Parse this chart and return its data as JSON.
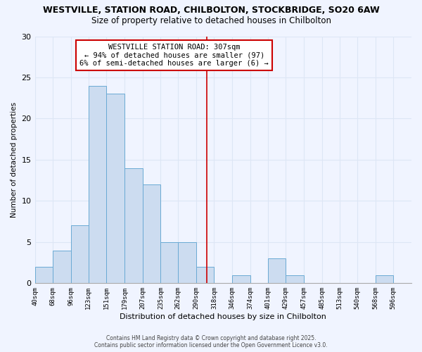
{
  "title1": "WESTVILLE, STATION ROAD, CHILBOLTON, STOCKBRIDGE, SO20 6AW",
  "title2": "Size of property relative to detached houses in Chilbolton",
  "xlabel": "Distribution of detached houses by size in Chilbolton",
  "ylabel": "Number of detached properties",
  "bin_labels": [
    "40sqm",
    "68sqm",
    "96sqm",
    "123sqm",
    "151sqm",
    "179sqm",
    "207sqm",
    "235sqm",
    "262sqm",
    "290sqm",
    "318sqm",
    "346sqm",
    "374sqm",
    "401sqm",
    "429sqm",
    "457sqm",
    "485sqm",
    "513sqm",
    "540sqm",
    "568sqm",
    "596sqm"
  ],
  "bin_edges": [
    40,
    68,
    96,
    123,
    151,
    179,
    207,
    235,
    262,
    290,
    318,
    346,
    374,
    401,
    429,
    457,
    485,
    513,
    540,
    568,
    596,
    624
  ],
  "counts": [
    2,
    4,
    7,
    24,
    23,
    14,
    12,
    5,
    5,
    2,
    0,
    1,
    0,
    3,
    1,
    0,
    0,
    0,
    0,
    1,
    0
  ],
  "bar_color": "#ccdcf0",
  "bar_edge_color": "#6aaad4",
  "reference_line_x": 307,
  "reference_line_color": "#cc0000",
  "annotation_title": "WESTVILLE STATION ROAD: 307sqm",
  "annotation_line1": "← 94% of detached houses are smaller (97)",
  "annotation_line2": "6% of semi-detached houses are larger (6) →",
  "annotation_box_color": "#ffffff",
  "annotation_box_edge_color": "#cc0000",
  "footer1": "Contains HM Land Registry data © Crown copyright and database right 2025.",
  "footer2": "Contains public sector information licensed under the Open Government Licence v3.0.",
  "bg_color": "#f0f4ff",
  "grid_color": "#dde6f5",
  "ylim": [
    0,
    30
  ],
  "yticks": [
    0,
    5,
    10,
    15,
    20,
    25,
    30
  ]
}
